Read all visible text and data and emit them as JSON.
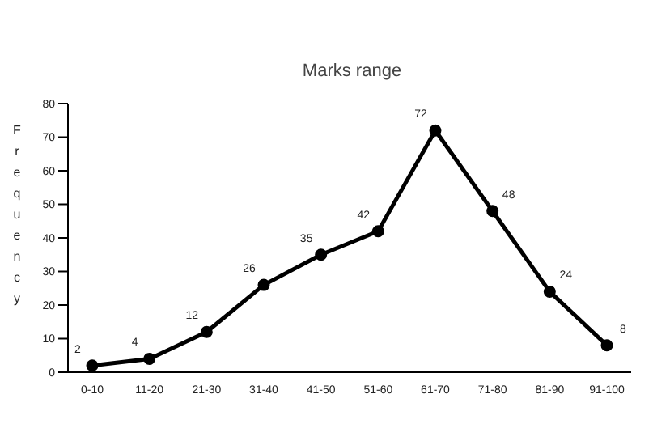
{
  "chart_data": {
    "type": "line",
    "title": "Marks range",
    "ylabel": "Frequency",
    "categories": [
      "0-10",
      "11-20",
      "21-30",
      "31-40",
      "41-50",
      "51-60",
      "61-70",
      "71-80",
      "81-90",
      "91-100"
    ],
    "series": [
      {
        "color": "#000000",
        "values": [
          2,
          4,
          12,
          26,
          35,
          42,
          72,
          48,
          24,
          8
        ]
      }
    ],
    "ylim": [
      0,
      80
    ],
    "yticks": [
      0,
      10,
      20,
      30,
      40,
      50,
      60,
      70,
      80
    ],
    "grid": false,
    "legend": false,
    "marker": "circle",
    "line_style": "solid",
    "data_labels": true
  }
}
